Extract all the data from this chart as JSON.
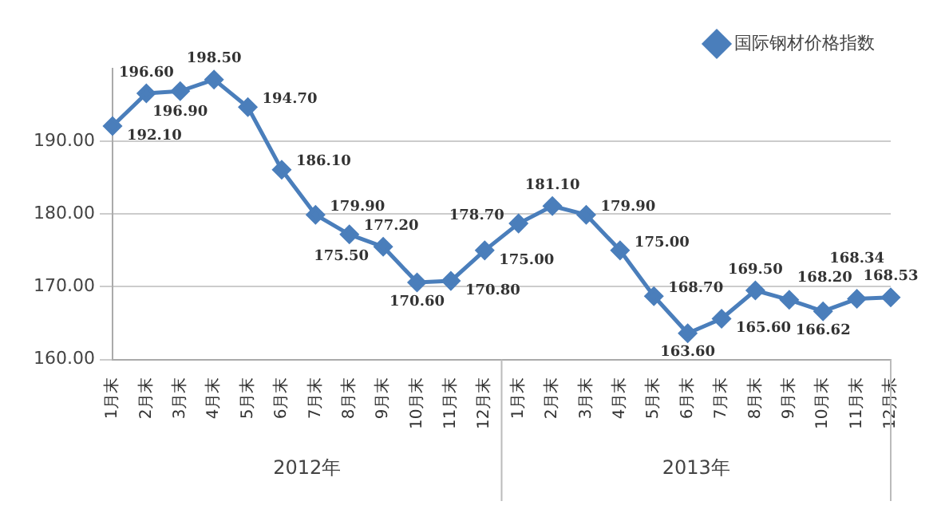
{
  "chart_data": {
    "type": "line",
    "categories": [
      "1月末",
      "2月末",
      "3月末",
      "4月末",
      "5月末",
      "6月末",
      "7月末",
      "8月末",
      "9月末",
      "10月末",
      "11月末",
      "12月末",
      "1月末",
      "2月末",
      "3月末",
      "4月末",
      "5月末",
      "6月末",
      "7月末",
      "8月末",
      "9月末",
      "10月末",
      "11月末",
      "12月末"
    ],
    "series": [
      {
        "name": "国际钢材价格指数",
        "color": "#4a7ebb",
        "values": [
          192.1,
          196.6,
          196.9,
          198.5,
          194.7,
          186.1,
          179.9,
          177.2,
          175.5,
          170.6,
          170.8,
          175.0,
          178.7,
          181.1,
          179.9,
          175.0,
          168.7,
          163.6,
          165.6,
          169.5,
          168.2,
          166.62,
          168.34,
          168.53
        ],
        "value_labels": [
          "192.10",
          "196.60",
          "196.90",
          "198.50",
          "194.70",
          "186.10",
          "179.90",
          "177.20",
          "175.50",
          "170.60",
          "170.80",
          "175.00",
          "178.70",
          "181.10",
          "179.90",
          "175.00",
          "168.70",
          "163.60",
          "165.60",
          "169.50",
          "168.20",
          "166.62",
          "168.34",
          "168.53"
        ]
      }
    ],
    "ylim": [
      160,
      200
    ],
    "yticks": [
      {
        "value": 160,
        "label": "160.00"
      },
      {
        "value": 170,
        "label": "170.00"
      },
      {
        "value": 180,
        "label": "180.00"
      },
      {
        "value": 190,
        "label": "190.00"
      }
    ],
    "grid": "y",
    "legend": "top right",
    "marker": "diamond",
    "line_style": "solid",
    "annotations": [
      "2012年",
      "2013年"
    ]
  }
}
